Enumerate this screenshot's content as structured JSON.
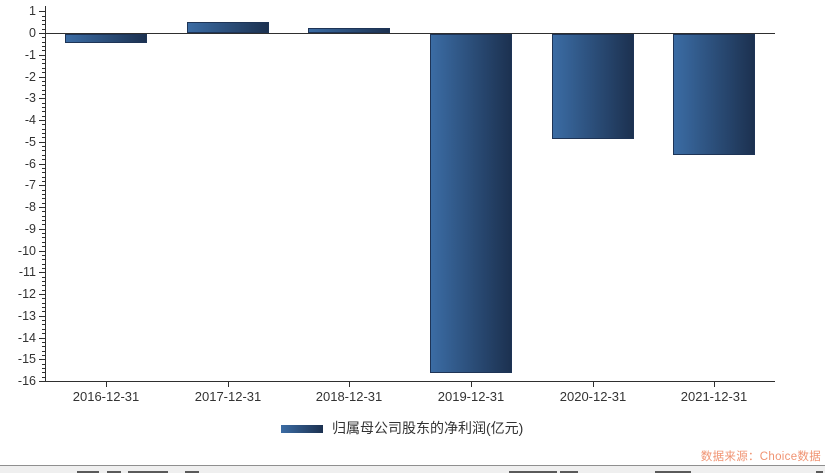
{
  "chart_data": {
    "type": "bar",
    "title": "",
    "categories": [
      "2016-12-31",
      "2017-12-31",
      "2018-12-31",
      "2019-12-31",
      "2020-12-31",
      "2021-12-31"
    ],
    "series": [
      {
        "name": "归属母公司股东的净利润(亿元)",
        "values": [
          -0.4,
          0.5,
          0.22,
          -15.6,
          -4.83,
          -5.57
        ]
      }
    ],
    "xlabel": "",
    "ylabel": "",
    "ylim": [
      -16,
      1
    ],
    "y_ticks": [
      1,
      0,
      -1,
      -2,
      -3,
      -4,
      -5,
      -6,
      -7,
      -8,
      -9,
      -10,
      -11,
      -12,
      -13,
      -14,
      -15,
      -16
    ],
    "y_minor_tick_step": 0.2,
    "grid": false,
    "legend_position": "bottom",
    "bar_gradient": [
      "#3b6ca4",
      "#1c3150"
    ],
    "bar_border_color": "#1e3456",
    "axis_color": "#2f2f2f",
    "label_color": "#333333"
  },
  "legend": {
    "label": "归属母公司股东的净利润(亿元)"
  },
  "footer": {
    "source_label": "数据来源：Choice数据",
    "source_color": "#f09372"
  }
}
